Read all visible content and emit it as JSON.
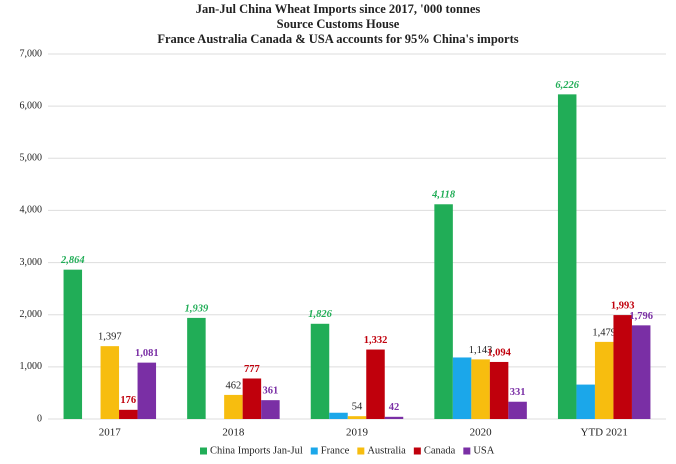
{
  "chart_data": {
    "type": "bar",
    "title": "Jan-Jul China Wheat Imports since 2017, '000 tonnes",
    "subtitle": "Source Customs House",
    "annotation": "France Australia Canada & USA accounts for 95% China's imports",
    "categories": [
      "2017",
      "2018",
      "2019",
      "2020",
      "YTD 2021"
    ],
    "series": [
      {
        "name": "China Imports Jan-Jul",
        "color": "#21ad57",
        "values": [
          2864,
          1939,
          1826,
          4118,
          6226
        ],
        "value_labels": [
          "2,864",
          "1,939",
          "1,826",
          "4,118",
          "6,226"
        ]
      },
      {
        "name": "France",
        "color": "#1ba7ea",
        "values": [
          0,
          0,
          120,
          1180,
          660
        ]
      },
      {
        "name": "Australia",
        "color": "#f7bd0f",
        "values": [
          1397,
          462,
          54,
          1143,
          1479
        ],
        "value_labels": [
          "1,397",
          "462",
          "54",
          "1,143",
          "1,479"
        ]
      },
      {
        "name": "Canada",
        "color": "#c0000c",
        "values": [
          176,
          777,
          1332,
          1094,
          1993
        ],
        "value_labels": [
          "176",
          "777",
          "1,332",
          "1,094",
          "1,993"
        ]
      },
      {
        "name": "USA",
        "color": "#7a2fa5",
        "values": [
          1081,
          361,
          42,
          331,
          1796
        ],
        "value_labels": [
          "1,081",
          "361",
          "42",
          "331",
          "1,796"
        ]
      }
    ],
    "ylim": [
      0,
      7000
    ],
    "yticks": [
      0,
      {
        "value": 1000,
        "label": "1,000"
      },
      {
        "value": 2000,
        "label": "2,000"
      },
      {
        "value": 3000,
        "label": "3,000"
      },
      {
        "value": 4000,
        "label": "4,000"
      },
      {
        "value": 5000,
        "label": "5,000"
      },
      {
        "value": 6000,
        "label": "6,000"
      },
      {
        "value": 7000,
        "label": "7,000"
      }
    ],
    "grid": true,
    "legend": "bottom"
  }
}
